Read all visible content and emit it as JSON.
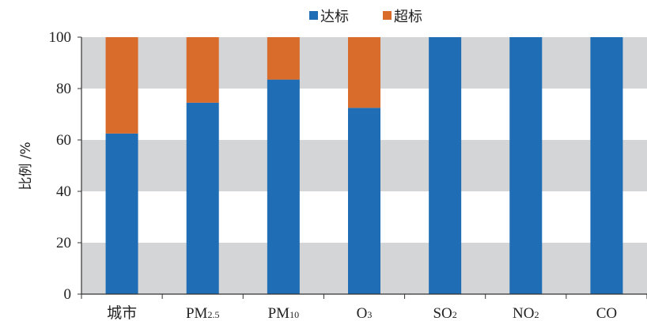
{
  "chart_data": {
    "type": "bar",
    "stacked": true,
    "title": "",
    "xlabel": "",
    "ylabel": "比例 /%",
    "ylim": [
      0,
      100
    ],
    "yticks": [
      0,
      20,
      40,
      60,
      80,
      100
    ],
    "grid": "alternating horizontal bands",
    "legend_position": "top-center",
    "categories": [
      {
        "base": "城市",
        "sub": ""
      },
      {
        "base": "PM",
        "sub": "2.5"
      },
      {
        "base": "PM",
        "sub": "10"
      },
      {
        "base": "O",
        "sub": "3"
      },
      {
        "base": "SO",
        "sub": "2"
      },
      {
        "base": "NO",
        "sub": "2"
      },
      {
        "base": "CO",
        "sub": ""
      }
    ],
    "series": [
      {
        "name": "达标",
        "color": "#1f6db5",
        "values": [
          62.5,
          74.5,
          83.5,
          72.5,
          100,
          100,
          100
        ]
      },
      {
        "name": "超标",
        "color": "#d96b2b",
        "values": [
          37.5,
          25.5,
          16.5,
          27.5,
          0,
          0,
          0
        ]
      }
    ],
    "band_color": "#d4d5d7"
  }
}
